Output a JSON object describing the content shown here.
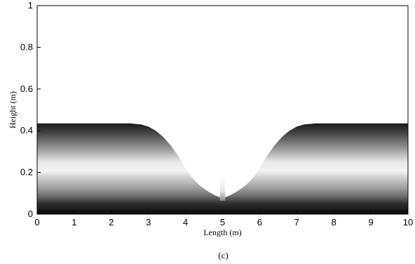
{
  "caption": "(c)",
  "chart_data": {
    "type": "area",
    "xlabel": "Length (m)",
    "ylabel": "Height (m)",
    "xlim": [
      0,
      10
    ],
    "ylim": [
      0,
      1
    ],
    "x_ticks": [
      "0",
      "1",
      "2",
      "3",
      "4",
      "5",
      "6",
      "7",
      "8",
      "9",
      "10"
    ],
    "y_ticks": [
      "0",
      "0.2",
      "0.4",
      "0.6",
      "0.8",
      "1"
    ],
    "grid": false,
    "legend": "none",
    "colormap": "grayscale, dark at bottom and top of fluid region",
    "free_surface": {
      "x": [
        0,
        2.5,
        2.8,
        3.0,
        3.2,
        3.4,
        3.6,
        3.8,
        4.0,
        4.2,
        4.4,
        4.6,
        4.8,
        4.95,
        5.0,
        5.05,
        5.2,
        5.4,
        5.6,
        5.8,
        6.0,
        6.2,
        6.4,
        6.6,
        6.8,
        7.0,
        7.2,
        7.5,
        10
      ],
      "y": [
        0.435,
        0.435,
        0.43,
        0.42,
        0.4,
        0.37,
        0.33,
        0.28,
        0.22,
        0.17,
        0.135,
        0.11,
        0.09,
        0.08,
        0.08,
        0.08,
        0.09,
        0.11,
        0.135,
        0.17,
        0.22,
        0.28,
        0.33,
        0.37,
        0.4,
        0.42,
        0.43,
        0.435,
        0.435
      ]
    },
    "annotations": [
      {
        "type": "spike",
        "x": 5.0,
        "y": 0.19,
        "width": 0.15
      }
    ]
  }
}
